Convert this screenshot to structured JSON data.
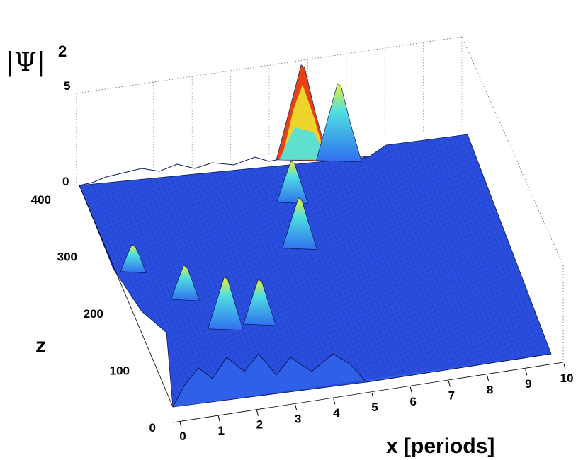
{
  "chart_data": {
    "type": "surface",
    "xlabel": "x  [periods]",
    "ylabel": "z",
    "zlabel": "|Ψ|",
    "zlabel_exponent": "2",
    "x_ticks": [
      "0",
      "1",
      "2",
      "3",
      "4",
      "5",
      "6",
      "7",
      "8",
      "9",
      "10"
    ],
    "z_ticks": [
      "0",
      "100",
      "200",
      "300",
      "400"
    ],
    "value_ticks": [
      "0",
      "5"
    ],
    "xlim": [
      0,
      10
    ],
    "zlim": [
      0,
      400
    ],
    "value_lim": [
      0,
      5
    ],
    "grid": true,
    "colormap": "jet",
    "colors": {
      "low": "#1f3cc8",
      "mid_low": "#2f6ef0",
      "mid": "#4fe0e0",
      "mid_high": "#f0f030",
      "high": "#e02000"
    },
    "peaks": [
      {
        "x": 5.9,
        "z": 400,
        "value": 5.0
      },
      {
        "x": 6.8,
        "z": 390,
        "value": 4.0
      },
      {
        "x": 5.2,
        "z": 330,
        "value": 2.0
      },
      {
        "x": 4.9,
        "z": 250,
        "value": 2.5
      },
      {
        "x": 2.2,
        "z": 130,
        "value": 2.6
      },
      {
        "x": 3.1,
        "z": 130,
        "value": 2.2
      },
      {
        "x": 1.5,
        "z": 190,
        "value": 1.6
      },
      {
        "x": 0.5,
        "z": 250,
        "value": 1.2
      }
    ]
  }
}
